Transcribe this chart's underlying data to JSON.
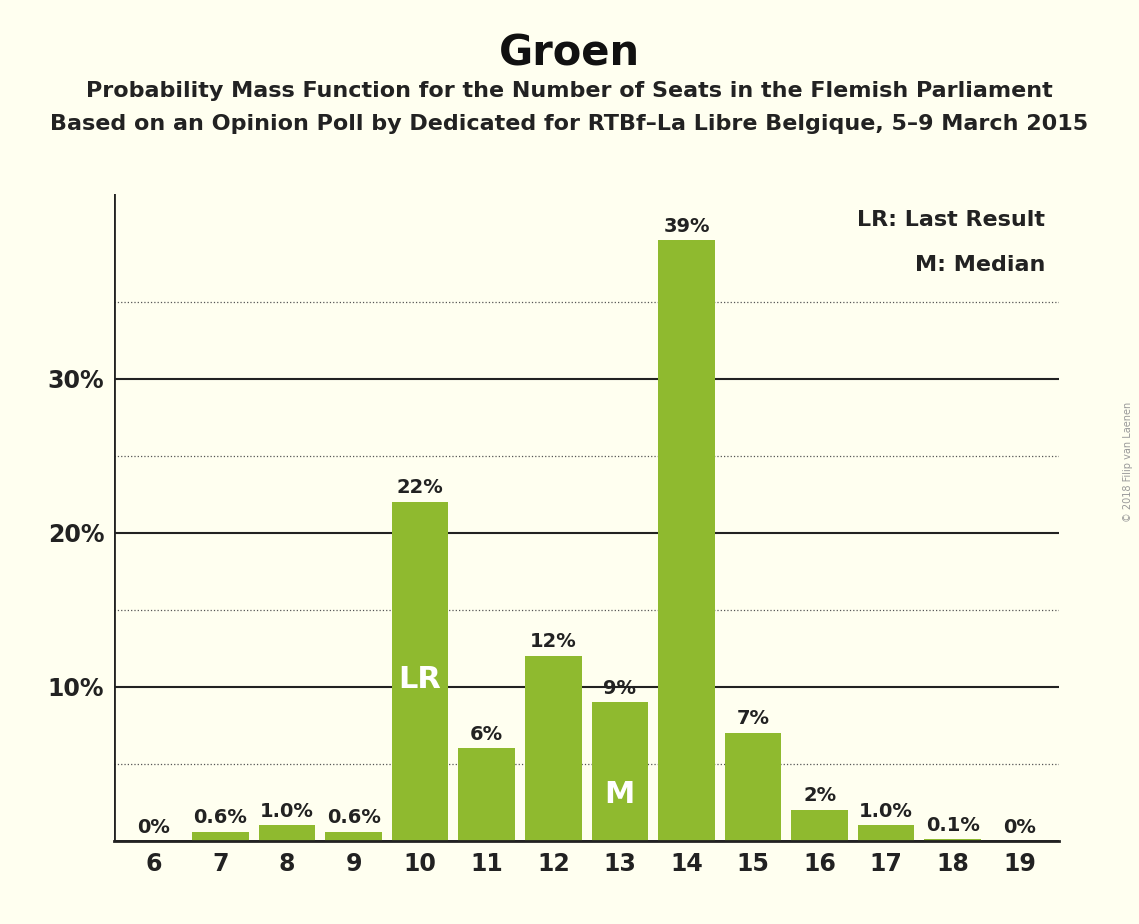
{
  "title": "Groen",
  "subtitle1": "Probability Mass Function for the Number of Seats in the Flemish Parliament",
  "subtitle2": "Based on an Opinion Poll by Dedicated for RTBf–La Libre Belgique, 5–9 March 2015",
  "watermark": "© 2018 Filip van Laenen",
  "seats": [
    6,
    7,
    8,
    9,
    10,
    11,
    12,
    13,
    14,
    15,
    16,
    17,
    18,
    19
  ],
  "probabilities": [
    0.0,
    0.6,
    1.0,
    0.6,
    22.0,
    6.0,
    12.0,
    9.0,
    39.0,
    7.0,
    2.0,
    1.0,
    0.1,
    0.0
  ],
  "labels": [
    "0%",
    "0.6%",
    "1.0%",
    "0.6%",
    "22%",
    "6%",
    "12%",
    "9%",
    "39%",
    "7%",
    "2%",
    "1.0%",
    "0.1%",
    "0%"
  ],
  "bar_color": "#8fba2f",
  "lr_seat": 10,
  "median_seat": 13,
  "lr_label": "LR",
  "median_label": "M",
  "legend_lr": "LR: Last Result",
  "legend_m": "M: Median",
  "background_color": "#fffff0",
  "ylim": [
    0,
    42
  ],
  "dotted_yticks": [
    5,
    15,
    25,
    35
  ],
  "solid_yticks": [
    10,
    20,
    30
  ],
  "title_fontsize": 30,
  "subtitle_fontsize": 16,
  "label_fontsize": 14,
  "tick_fontsize": 17,
  "legend_fontsize": 16,
  "lr_label_fontsize": 22,
  "m_label_fontsize": 22
}
